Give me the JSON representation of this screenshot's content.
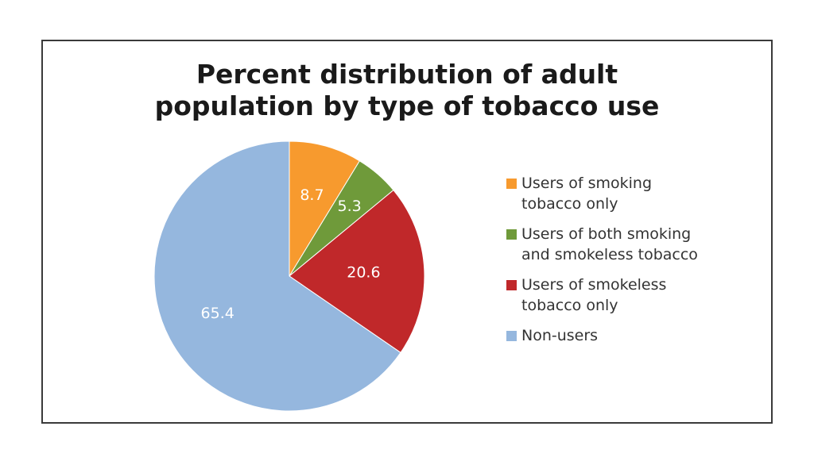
{
  "chart_data": {
    "type": "pie",
    "title": "Percent distribution of adult population by type of tobacco use",
    "title_lines": [
      "Percent distribution of adult",
      "population by type of tobacco use"
    ],
    "legend_position": "right",
    "slices": [
      {
        "name": "Users of smoking tobacco only",
        "legend_lines": "Users of smoking\ntobacco only",
        "value": 8.7,
        "label": "8.7",
        "color": "#F79A2E"
      },
      {
        "name": "Users of both smoking and smokeless tobacco",
        "legend_lines": "Users of both smoking\nand smokeless tobacco",
        "value": 5.3,
        "label": "5.3",
        "color": "#6F9A3A"
      },
      {
        "name": "Users of smokeless tobacco only",
        "legend_lines": "Users of smokeless\ntobacco only",
        "value": 20.6,
        "label": "20.6",
        "color": "#C0282A"
      },
      {
        "name": "Non-users",
        "legend_lines": "Non-users",
        "value": 65.4,
        "label": "65.4",
        "color": "#95B7DE"
      }
    ]
  }
}
